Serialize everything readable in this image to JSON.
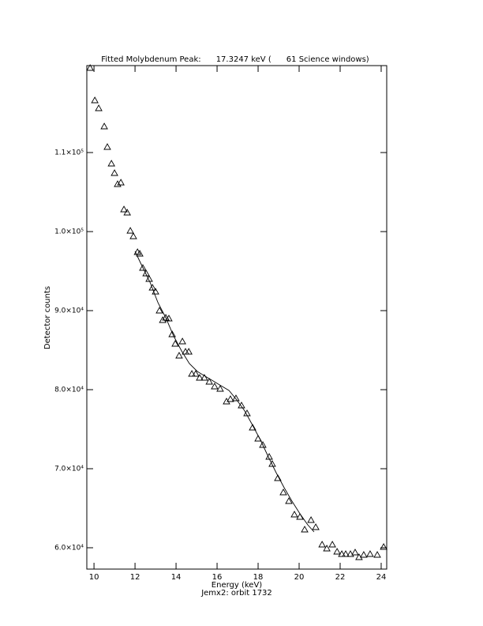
{
  "chart_data": {
    "type": "scatter",
    "title": "Fitted Molybdenum Peak:      17.3247 keV (      61 Science windows)",
    "x_label": "Energy (keV)",
    "y_label": "Detector counts",
    "footnote": "Jemx2: orbit 1732",
    "xlim": [
      9.65,
      24.27
    ],
    "ylim": [
      57300,
      121000
    ],
    "xticks": [
      10,
      12,
      14,
      16,
      18,
      20,
      22,
      24
    ],
    "yticks": [
      {
        "value": 60000,
        "label": "6.0×10⁴"
      },
      {
        "value": 70000,
        "label": "7.0×10⁴"
      },
      {
        "value": 80000,
        "label": "8.0×10⁴"
      },
      {
        "value": 90000,
        "label": "9.0×10⁴"
      },
      {
        "value": 100000,
        "label": "1.0×10⁵"
      },
      {
        "value": 110000,
        "label": "1.1×10⁵"
      }
    ],
    "color": "#000000",
    "series": [
      {
        "marker": "triangle",
        "x": [
          9.81,
          10.04,
          10.23,
          10.5,
          10.65,
          10.85,
          11.0,
          11.15,
          11.31,
          11.46,
          11.62,
          11.77,
          11.92,
          12.12,
          12.23,
          12.38,
          12.54,
          12.69,
          12.85,
          13.0,
          13.19,
          13.35,
          13.5,
          13.65,
          13.81,
          13.96,
          14.15,
          14.31,
          14.46,
          14.62,
          14.77,
          14.96,
          15.15,
          15.38,
          15.62,
          15.88,
          16.15,
          16.46,
          16.65,
          16.92,
          17.19,
          17.46,
          17.73,
          18.0,
          18.23,
          18.54,
          18.69,
          18.96,
          19.23,
          19.5,
          19.77,
          20.04,
          20.27,
          20.58,
          20.81,
          21.12,
          21.35,
          21.62,
          21.85,
          22.08,
          22.27,
          22.5,
          22.73,
          22.92,
          23.15,
          23.46,
          23.81,
          24.12
        ],
        "values": [
          120700,
          116600,
          115600,
          113300,
          110700,
          108600,
          107400,
          106000,
          106200,
          102800,
          102400,
          100100,
          99400,
          97400,
          97200,
          95400,
          94700,
          94000,
          92900,
          92400,
          90000,
          88800,
          89100,
          89000,
          87000,
          85800,
          84300,
          86100,
          84800,
          84800,
          82000,
          82000,
          81500,
          81500,
          81000,
          80400,
          80100,
          78500,
          78800,
          78900,
          78000,
          77000,
          75200,
          73800,
          73000,
          71500,
          70600,
          68800,
          67000,
          65900,
          64200,
          63900,
          62300,
          63500,
          62600,
          60400,
          59900,
          60400,
          59500,
          59200,
          59200,
          59200,
          59400,
          58800,
          59100,
          59200,
          59100,
          60100
        ]
      },
      {
        "marker": "line",
        "x": [
          12.0,
          12.35,
          12.73,
          13.12,
          13.5,
          13.88,
          14.27,
          14.65,
          15.04,
          15.42,
          15.81,
          16.19,
          16.58,
          16.96,
          17.35,
          17.73,
          18.12,
          18.5,
          18.88,
          19.27,
          19.65,
          20.04,
          20.42,
          20.73
        ],
        "values": [
          97500,
          95600,
          93600,
          91000,
          89100,
          86800,
          84900,
          83300,
          82300,
          81700,
          81100,
          80500,
          79900,
          78700,
          77300,
          75500,
          73600,
          71500,
          69500,
          67600,
          65900,
          64300,
          62900,
          62000
        ]
      }
    ]
  }
}
